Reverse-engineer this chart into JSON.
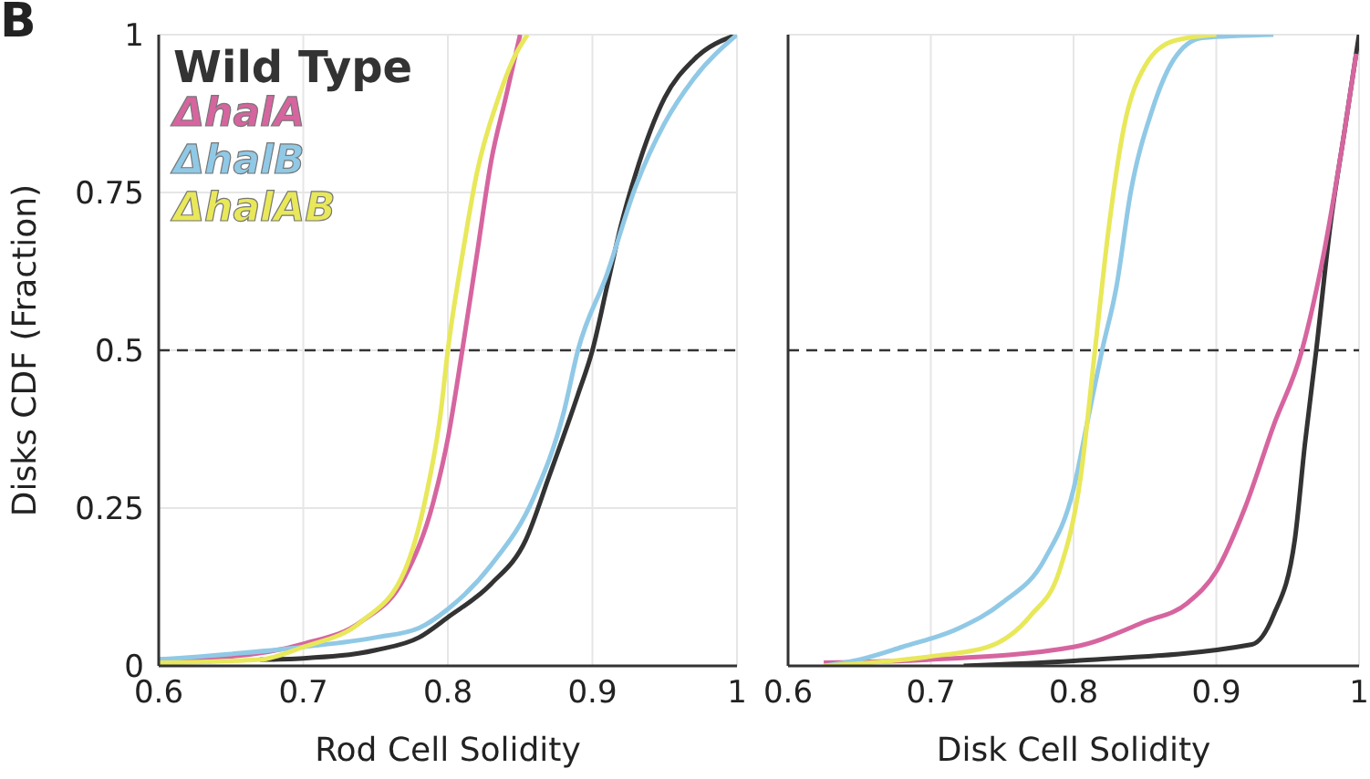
{
  "chart_data": [
    {
      "type": "line",
      "annotations": [
        "B"
      ],
      "xlabel": "Rod Cell Solidity",
      "ylabel": "Disks CDF (Fraction)",
      "xlim": [
        0.6,
        1
      ],
      "xticks": [
        0.6,
        0.7,
        0.8,
        0.9,
        1
      ],
      "ylim": [
        0,
        1
      ],
      "yticks": [
        0,
        0.25,
        0.5,
        0.75,
        1
      ],
      "grid": true,
      "legend": "top left",
      "ref_lines": [
        {
          "axis": "y",
          "value": 0.5,
          "color": "#333333",
          "line_style": "dashed"
        }
      ],
      "series": [
        {
          "name": "Wild Type",
          "color": "#333333",
          "x": [
            0.67,
            0.7,
            0.75,
            0.78,
            0.8,
            0.83,
            0.854,
            0.87,
            0.89,
            0.9,
            0.91,
            0.92,
            0.93,
            0.95,
            0.97,
            1.0
          ],
          "values": [
            0.01,
            0.012,
            0.025,
            0.045,
            0.077,
            0.13,
            0.2,
            0.3,
            0.43,
            0.5,
            0.6,
            0.7,
            0.78,
            0.9,
            0.96,
            1.0
          ]
        },
        {
          "name": "ΔhalA",
          "color": "#d6659f",
          "x": [
            0.6,
            0.65,
            0.7,
            0.74,
            0.77,
            0.79,
            0.8,
            0.81,
            0.82,
            0.83,
            0.84,
            0.85
          ],
          "values": [
            0.01,
            0.015,
            0.035,
            0.07,
            0.14,
            0.26,
            0.36,
            0.5,
            0.65,
            0.8,
            0.9,
            1.0
          ]
        },
        {
          "name": "ΔhalB",
          "color": "#90c9e6",
          "x": [
            0.6,
            0.7,
            0.75,
            0.78,
            0.8,
            0.83,
            0.86,
            0.88,
            0.89,
            0.91,
            0.93,
            0.95,
            0.97,
            1.0
          ],
          "values": [
            0.01,
            0.03,
            0.045,
            0.06,
            0.09,
            0.16,
            0.27,
            0.4,
            0.5,
            0.62,
            0.76,
            0.86,
            0.93,
            1.0
          ]
        },
        {
          "name": "ΔhalAB",
          "color": "#e8e85a",
          "x": [
            0.6,
            0.67,
            0.7,
            0.74,
            0.77,
            0.785,
            0.795,
            0.8,
            0.81,
            0.82,
            0.835,
            0.845,
            0.855
          ],
          "values": [
            0.005,
            0.01,
            0.03,
            0.07,
            0.15,
            0.27,
            0.4,
            0.5,
            0.65,
            0.78,
            0.9,
            0.96,
            1.0
          ]
        }
      ]
    },
    {
      "type": "line",
      "xlabel": "Disk Cell Solidity",
      "xlim": [
        0.6,
        1
      ],
      "xticks": [
        0.6,
        0.7,
        0.8,
        0.9,
        1
      ],
      "ylim": [
        0,
        1
      ],
      "yticks": [
        0,
        0.25,
        0.5,
        0.75,
        1
      ],
      "tick_labels": "x",
      "grid": true,
      "ref_lines": [
        {
          "axis": "y",
          "value": 0.5,
          "color": "#333333",
          "line_style": "dashed"
        }
      ],
      "series": [
        {
          "color": "#333333",
          "x": [
            0.723,
            0.8,
            0.925,
            0.94,
            0.955,
            0.962,
            0.97,
            0.98,
            0.99,
            1.0
          ],
          "values": [
            0.0,
            0.008,
            0.034,
            0.08,
            0.2,
            0.35,
            0.5,
            0.7,
            0.85,
            1.0
          ]
        },
        {
          "color": "#d6659f",
          "x": [
            0.625,
            0.7,
            0.8,
            0.85,
            0.88,
            0.9,
            0.92,
            0.94,
            0.96,
            0.975,
            0.99,
            0.998
          ],
          "values": [
            0.005,
            0.01,
            0.03,
            0.07,
            0.1,
            0.15,
            0.25,
            0.38,
            0.5,
            0.65,
            0.85,
            0.97
          ]
        },
        {
          "color": "#90c9e6",
          "x": [
            0.625,
            0.65,
            0.68,
            0.72,
            0.75,
            0.78,
            0.8,
            0.81,
            0.82,
            0.83,
            0.84,
            0.855,
            0.87,
            0.89,
            0.94
          ],
          "values": [
            0.0,
            0.01,
            0.03,
            0.06,
            0.1,
            0.17,
            0.28,
            0.39,
            0.5,
            0.6,
            0.75,
            0.88,
            0.96,
            0.995,
            1.0
          ]
        },
        {
          "color": "#e8e85a",
          "x": [
            0.625,
            0.7,
            0.74,
            0.77,
            0.79,
            0.805,
            0.815,
            0.825,
            0.835,
            0.85,
            0.87,
            0.9
          ],
          "values": [
            0.0,
            0.015,
            0.03,
            0.08,
            0.15,
            0.3,
            0.5,
            0.7,
            0.85,
            0.95,
            0.99,
            1.0
          ]
        }
      ]
    }
  ]
}
